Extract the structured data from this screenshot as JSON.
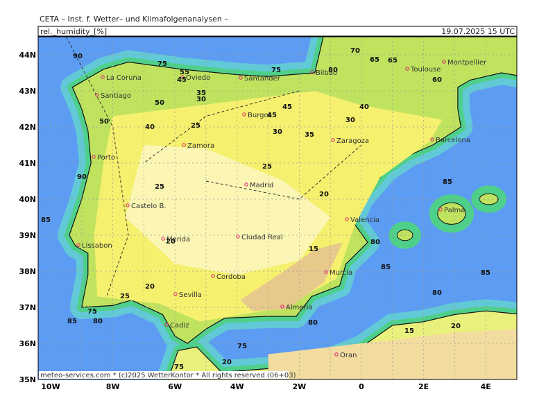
{
  "header": {
    "title": "CETA – Inst. f. Wetter– und Klimafolgenanalysen –",
    "variable": "rel._humidity_[%]",
    "datetime": "19.07.2025 15 UTC"
  },
  "axes": {
    "latitudes": [
      "44N",
      "43N",
      "42N",
      "41N",
      "40N",
      "39N",
      "38N",
      "37N",
      "36N",
      "35N"
    ],
    "longitudes": [
      "10W",
      "8W",
      "6W",
      "4W",
      "2W",
      "0",
      "2E",
      "4E"
    ]
  },
  "cities": [
    "La Coruna",
    "Santiago",
    "Oviedo",
    "Santander",
    "Bilbao",
    "Toulouse",
    "Montpellier",
    "Burgos",
    "Zamora",
    "Zaragoza",
    "Barcelona",
    "Porto",
    "Madrid",
    "Castelo B.",
    "Valencia",
    "Palma",
    "Lissabon",
    "Merida",
    "Ciudad Real",
    "Cordoba",
    "Murcia",
    "Sevilla",
    "Almeria",
    "Cadiz",
    "Oran"
  ],
  "contour_labels": [
    90,
    75,
    55,
    45,
    65,
    75,
    80,
    70,
    65,
    60,
    45,
    35,
    30,
    50,
    50,
    40,
    25,
    45,
    30,
    35,
    30,
    40,
    25,
    25,
    20,
    85,
    85,
    20,
    15,
    80,
    85,
    80,
    80,
    20,
    25,
    75,
    80,
    85,
    15,
    20,
    75,
    20,
    75,
    90,
    85
  ],
  "footer": "meteo-services.com * (c)2025 WetterKontor * All rights reserved (06+03)"
}
